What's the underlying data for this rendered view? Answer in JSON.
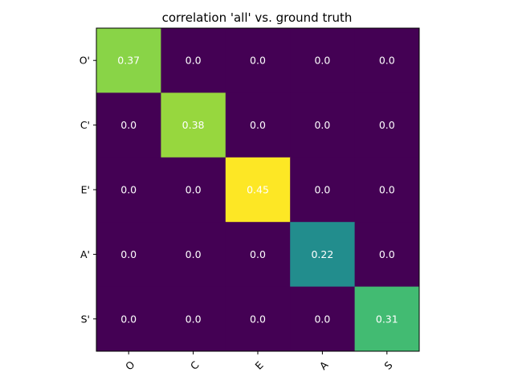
{
  "chart_data": {
    "type": "heatmap",
    "title": "correlation 'all' vs. ground truth",
    "xlabel": "",
    "ylabel": "",
    "x_categories": [
      "O",
      "C",
      "E",
      "A",
      "S"
    ],
    "y_categories": [
      "O'",
      "C'",
      "E'",
      "A'",
      "S'"
    ],
    "values": [
      [
        0.37,
        0.0,
        0.0,
        0.0,
        0.0
      ],
      [
        0.0,
        0.38,
        0.0,
        0.0,
        0.0
      ],
      [
        0.0,
        0.0,
        0.45,
        0.0,
        0.0
      ],
      [
        0.0,
        0.0,
        0.0,
        0.22,
        0.0
      ],
      [
        0.0,
        0.0,
        0.0,
        0.0,
        0.31
      ]
    ],
    "value_labels": [
      [
        "0.37",
        "0.0",
        "0.0",
        "0.0",
        "0.0"
      ],
      [
        "0.0",
        "0.38",
        "0.0",
        "0.0",
        "0.0"
      ],
      [
        "0.0",
        "0.0",
        "0.45",
        "0.0",
        "0.0"
      ],
      [
        "0.0",
        "0.0",
        "0.0",
        "0.22",
        "0.0"
      ],
      [
        "0.0",
        "0.0",
        "0.0",
        "0.0",
        "0.31"
      ]
    ],
    "colormap": "viridis",
    "grid": false,
    "legend": "none"
  }
}
